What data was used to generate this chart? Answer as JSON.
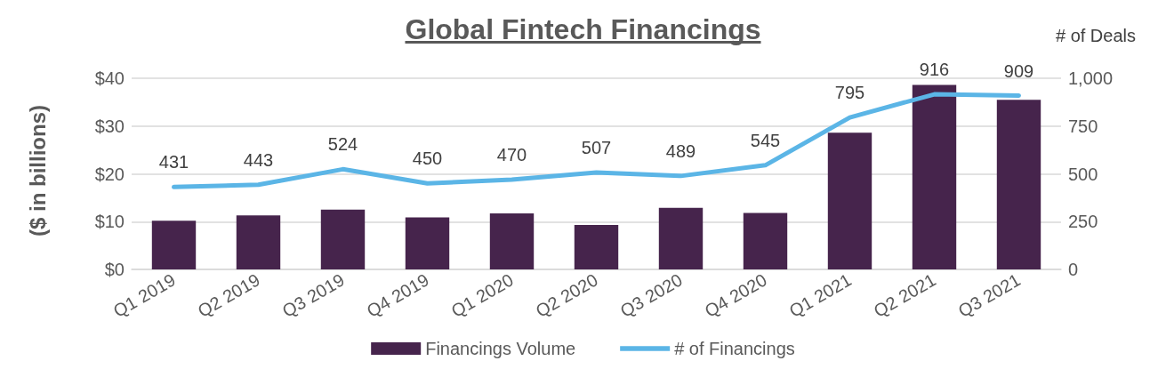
{
  "chart_data": {
    "type": "bar",
    "title": "Global Fintech Financings",
    "ylabel": "($ in billions)",
    "y2label": "# of Deals",
    "categories": [
      "Q1 2019",
      "Q2 2019",
      "Q3 2019",
      "Q4 2019",
      "Q1 2020",
      "Q2 2020",
      "Q3 2020",
      "Q4 2020",
      "Q1 2021",
      "Q2 2021",
      "Q3 2021"
    ],
    "series": [
      {
        "name": "Financings Volume",
        "color": "#46244c",
        "values": [
          10.2,
          11.3,
          12.5,
          10.9,
          11.7,
          9.3,
          12.9,
          11.8,
          28.6,
          38.6,
          35.5
        ]
      },
      {
        "name": "# of Financings",
        "type": "line",
        "axis": "y2",
        "color": "#5bb5e6",
        "values": [
          431,
          443,
          524,
          450,
          470,
          507,
          489,
          545,
          795,
          916,
          909
        ],
        "value_labels": [
          "431",
          "443",
          "524",
          "450",
          "470",
          "507",
          "489",
          "545",
          "795",
          "916",
          "909"
        ]
      }
    ],
    "ylim": [
      0,
      40
    ],
    "yticks": [
      {
        "value": 0,
        "label": "$0"
      },
      {
        "value": 10,
        "label": "$10"
      },
      {
        "value": 20,
        "label": "$20"
      },
      {
        "value": 30,
        "label": "$30"
      },
      {
        "value": 40,
        "label": "$40"
      }
    ],
    "y2lim": [
      0,
      1000
    ],
    "y2ticks": [
      0,
      250,
      500,
      750,
      {
        "value": 1000,
        "label": "1,000"
      }
    ],
    "grid": "y",
    "legend": "bottom",
    "marker": "none",
    "line_style": "solid"
  }
}
